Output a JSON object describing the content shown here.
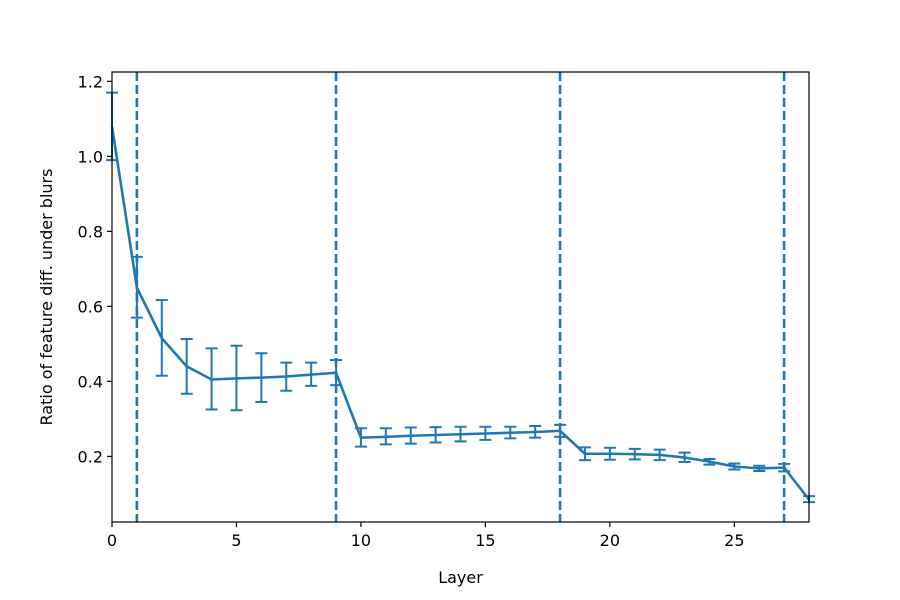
{
  "chart_data": {
    "type": "line",
    "title": "",
    "xlabel": "Layer",
    "ylabel": "Ratio of feature diff. under blurs",
    "xlim": [
      0,
      28
    ],
    "ylim": [
      0.025,
      1.225
    ],
    "xticks": [
      0,
      5,
      10,
      15,
      20,
      25
    ],
    "yticks": [
      0.2,
      0.4,
      0.6,
      0.8,
      1.0,
      1.2
    ],
    "xtick_labels": [
      "0",
      "5",
      "10",
      "15",
      "20",
      "25"
    ],
    "ytick_labels": [
      "0.2",
      "0.4",
      "0.6",
      "0.8",
      "1.0",
      "1.2"
    ],
    "grid": false,
    "color": "#1f77b4",
    "series": [
      {
        "x": [
          0,
          1,
          2,
          3,
          4,
          5,
          6,
          7,
          8,
          9,
          10,
          11,
          12,
          13,
          14,
          15,
          16,
          17,
          18,
          19,
          20,
          21,
          22,
          23,
          24,
          25,
          26,
          27,
          28
        ],
        "y": [
          1.08,
          0.65,
          0.515,
          0.44,
          0.405,
          0.408,
          0.41,
          0.413,
          0.418,
          0.423,
          0.25,
          0.252,
          0.255,
          0.257,
          0.259,
          0.261,
          0.263,
          0.265,
          0.268,
          0.207,
          0.207,
          0.206,
          0.204,
          0.197,
          0.186,
          0.173,
          0.168,
          0.17,
          0.085
        ],
        "err_low": [
          0.99,
          0.57,
          0.415,
          0.367,
          0.325,
          0.323,
          0.345,
          0.375,
          0.388,
          0.39,
          0.226,
          0.232,
          0.234,
          0.237,
          0.24,
          0.244,
          0.248,
          0.25,
          0.252,
          0.19,
          0.191,
          0.192,
          0.19,
          0.185,
          0.178,
          0.165,
          0.161,
          0.16,
          0.078
        ],
        "err_high": [
          1.17,
          0.732,
          0.617,
          0.513,
          0.488,
          0.495,
          0.475,
          0.45,
          0.45,
          0.457,
          0.275,
          0.275,
          0.277,
          0.278,
          0.279,
          0.279,
          0.279,
          0.281,
          0.284,
          0.224,
          0.223,
          0.22,
          0.218,
          0.21,
          0.193,
          0.181,
          0.175,
          0.18,
          0.094
        ]
      }
    ],
    "vlines": [
      1,
      9,
      18,
      27
    ]
  }
}
